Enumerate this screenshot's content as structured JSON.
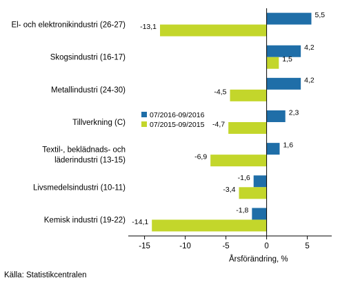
{
  "chart_data": {
    "type": "bar",
    "orientation": "horizontal",
    "categories": [
      [
        "El- och elektronikindustri (26-27)"
      ],
      [
        "Skogsindustri (16-17)"
      ],
      [
        "Metallindustri (24-30)"
      ],
      [
        "Tillverkning (C)"
      ],
      [
        "Textil-, beklädnads- och",
        "läderindustri (13-15)"
      ],
      [
        "Livsmedelsindustri (10-11)"
      ],
      [
        "Kemisk industri (19-22)"
      ]
    ],
    "series": [
      {
        "name": "07/2016-09/2016",
        "color": "#1f6ea8",
        "values": [
          5.5,
          4.2,
          4.2,
          2.3,
          1.6,
          -1.6,
          -1.8
        ],
        "labels": [
          "5,5",
          "4,2",
          "4,2",
          "2,3",
          "1,6",
          "-1,6",
          "-1,8"
        ]
      },
      {
        "name": "07/2015-09/2015",
        "color": "#c3d62b",
        "values": [
          -13.1,
          1.5,
          -4.5,
          -4.7,
          -6.9,
          -3.4,
          -14.1
        ],
        "labels": [
          "-13,1",
          "1,5",
          "-4,5",
          "-4,7",
          "-6,9",
          "-3,4",
          "-14,1"
        ]
      }
    ],
    "xlim": [
      -17,
      8
    ],
    "xticks": [
      -15,
      -10,
      -5,
      0,
      5
    ],
    "xtick_labels": [
      "-15",
      "-10",
      "-5",
      "0",
      "5"
    ],
    "xlabel": "Årsförändring, %",
    "grid": false,
    "legend_position": "left of plot, next to Tillverkning (C)"
  },
  "source": "Källa: Statistikcentralen"
}
